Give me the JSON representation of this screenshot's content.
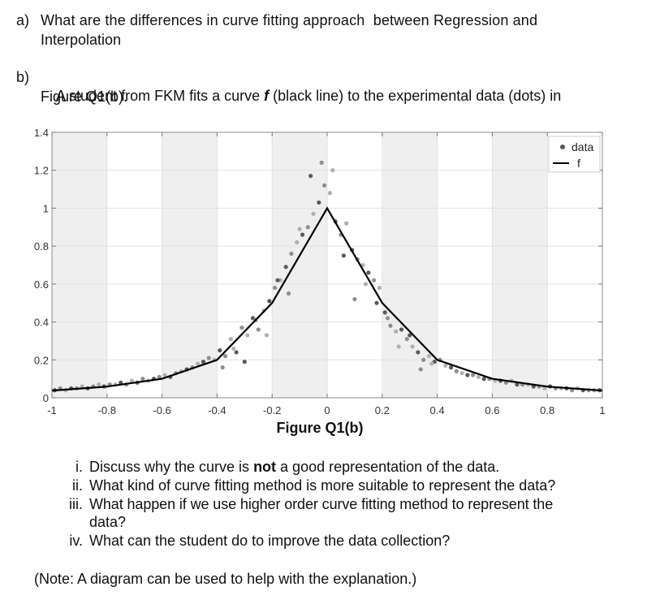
{
  "question_a": {
    "label": "a)",
    "line1": "What are the differences in curve fitting approach  between Regression and",
    "line2": "Interpolation"
  },
  "question_b": {
    "label": "b)",
    "line1_pre": "A student from FKM fits a curve ",
    "line1_var": "f",
    "line1_post": " (black line) to the experimental data (dots) in",
    "line2": "Figure Q1(b)."
  },
  "figure": {
    "caption": "Figure Q1(b)",
    "legend": {
      "data": "data",
      "f": "f"
    }
  },
  "chart_data": {
    "type": "scatter",
    "xlim": [
      -1,
      1
    ],
    "ylim": [
      0,
      1.4
    ],
    "x_ticks": [
      "-1",
      "-0.8",
      "-0.6",
      "-0.4",
      "-0.2",
      "0",
      "0.2",
      "0.4",
      "0.6",
      "0.8",
      "1"
    ],
    "y_ticks": [
      "0",
      "0.2",
      "0.4",
      "0.6",
      "0.8",
      "1",
      "1.2",
      "1.4"
    ],
    "grid": true,
    "legend_position": "top-right",
    "shaded_bands": [
      [
        -1,
        -0.8
      ],
      [
        -0.6,
        -0.4
      ],
      [
        -0.2,
        0
      ],
      [
        0.2,
        0.4
      ],
      [
        0.6,
        0.8
      ]
    ],
    "series": [
      {
        "name": "f",
        "kind": "line",
        "x": [
          -1,
          -0.8,
          -0.6,
          -0.4,
          -0.2,
          0,
          0.2,
          0.4,
          0.6,
          0.8,
          1
        ],
        "y": [
          0.038,
          0.059,
          0.1,
          0.2,
          0.5,
          1.0,
          0.5,
          0.2,
          0.1,
          0.059,
          0.038
        ]
      },
      {
        "name": "data",
        "kind": "scatter",
        "x": [
          -0.99,
          -0.97,
          -0.95,
          -0.93,
          -0.91,
          -0.89,
          -0.87,
          -0.85,
          -0.83,
          -0.81,
          -0.79,
          -0.77,
          -0.75,
          -0.73,
          -0.71,
          -0.69,
          -0.67,
          -0.65,
          -0.63,
          -0.61,
          -0.59,
          -0.57,
          -0.55,
          -0.53,
          -0.51,
          -0.49,
          -0.47,
          -0.45,
          -0.43,
          -0.41,
          -0.39,
          -0.37,
          -0.35,
          -0.33,
          -0.31,
          -0.29,
          -0.27,
          -0.25,
          -0.23,
          -0.21,
          -0.19,
          -0.17,
          -0.15,
          -0.13,
          -0.11,
          -0.09,
          -0.07,
          -0.05,
          -0.03,
          -0.01,
          0.01,
          0.03,
          0.05,
          0.07,
          0.09,
          0.11,
          0.13,
          0.15,
          0.17,
          0.19,
          0.21,
          0.23,
          0.25,
          0.27,
          0.29,
          0.31,
          0.33,
          0.35,
          0.37,
          0.39,
          0.41,
          0.43,
          0.45,
          0.47,
          0.49,
          0.51,
          0.53,
          0.55,
          0.57,
          0.59,
          0.61,
          0.63,
          0.65,
          0.67,
          0.69,
          0.71,
          0.73,
          0.75,
          0.77,
          0.79,
          0.81,
          0.83,
          0.85,
          0.87,
          0.89,
          0.91,
          0.93,
          0.95,
          0.97,
          0.99,
          -0.38,
          -0.34,
          -0.3,
          -0.26,
          -0.22,
          -0.18,
          -0.14,
          -0.1,
          -0.06,
          -0.02,
          0.02,
          0.06,
          0.1,
          0.14,
          0.18,
          0.22,
          0.26,
          0.3,
          0.34,
          0.38
        ],
        "y": [
          0.04,
          0.05,
          0.04,
          0.05,
          0.05,
          0.06,
          0.05,
          0.06,
          0.07,
          0.06,
          0.07,
          0.07,
          0.08,
          0.07,
          0.09,
          0.08,
          0.1,
          0.09,
          0.1,
          0.11,
          0.12,
          0.11,
          0.13,
          0.14,
          0.15,
          0.16,
          0.18,
          0.19,
          0.21,
          0.2,
          0.25,
          0.22,
          0.31,
          0.24,
          0.37,
          0.33,
          0.42,
          0.36,
          0.46,
          0.51,
          0.58,
          0.62,
          0.69,
          0.76,
          0.82,
          0.86,
          0.9,
          0.97,
          1.03,
          1.12,
          1.08,
          0.93,
          0.86,
          0.92,
          0.78,
          0.73,
          0.7,
          0.66,
          0.62,
          0.58,
          0.45,
          0.38,
          0.35,
          0.36,
          0.31,
          0.27,
          0.24,
          0.2,
          0.22,
          0.19,
          0.2,
          0.17,
          0.16,
          0.14,
          0.13,
          0.12,
          0.12,
          0.11,
          0.1,
          0.1,
          0.09,
          0.09,
          0.08,
          0.09,
          0.07,
          0.07,
          0.07,
          0.06,
          0.06,
          0.05,
          0.06,
          0.05,
          0.05,
          0.05,
          0.04,
          0.05,
          0.04,
          0.04,
          0.04,
          0.04,
          0.16,
          0.26,
          0.19,
          0.41,
          0.33,
          0.62,
          0.55,
          0.89,
          1.17,
          1.24,
          1.2,
          0.75,
          0.52,
          0.6,
          0.5,
          0.42,
          0.27,
          0.33,
          0.15,
          0.18
        ]
      }
    ]
  },
  "sub_questions": [
    {
      "numeral": "i.",
      "pre": "Discuss why the curve is ",
      "bold": "not",
      "post": " a good representation of the data.",
      "line2": ""
    },
    {
      "numeral": "ii.",
      "pre": "What kind of curve fitting method is more suitable to represent the data?",
      "bold": "",
      "post": "",
      "line2": ""
    },
    {
      "numeral": "iii.",
      "pre": "What happen if we use higher order curve fitting method to represent the",
      "bold": "",
      "post": "",
      "line2": "data?"
    },
    {
      "numeral": "iv.",
      "pre": "What can the student do to improve the data collection?",
      "bold": "",
      "post": "",
      "line2": ""
    }
  ],
  "note": "(Note: A diagram can be used to help with the explanation.)"
}
